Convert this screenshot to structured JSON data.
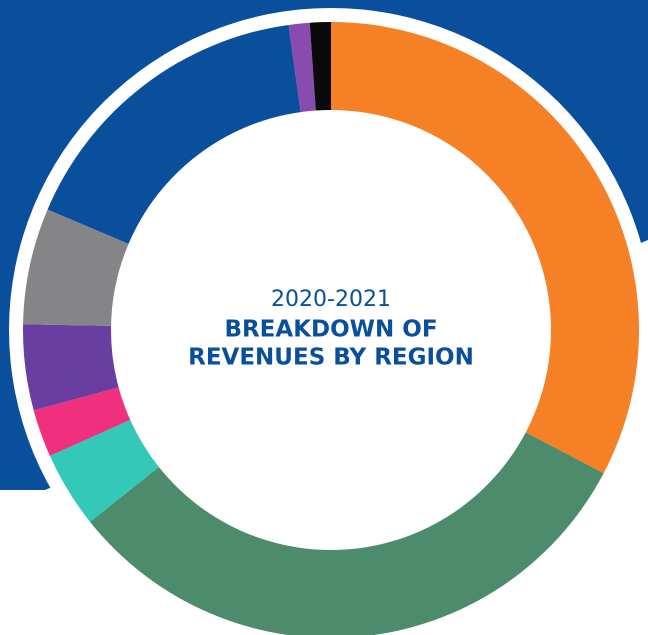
{
  "chart_data": {
    "type": "donut",
    "subtitle": "2020-2021",
    "title": [
      "BREAKDOWN OF",
      "REVENUES BY REGION"
    ],
    "values": [
      32.7,
      31.6,
      4,
      2.5,
      4.5,
      6.1,
      16.4,
      1.1,
      1.1
    ],
    "colors": [
      "#f58025",
      "#4c8b6b",
      "#34c8b8",
      "#f0307f",
      "#6a3ea1",
      "#858487",
      "#0a4f9c",
      "#8a4baf",
      "#0a0a0a"
    ]
  }
}
